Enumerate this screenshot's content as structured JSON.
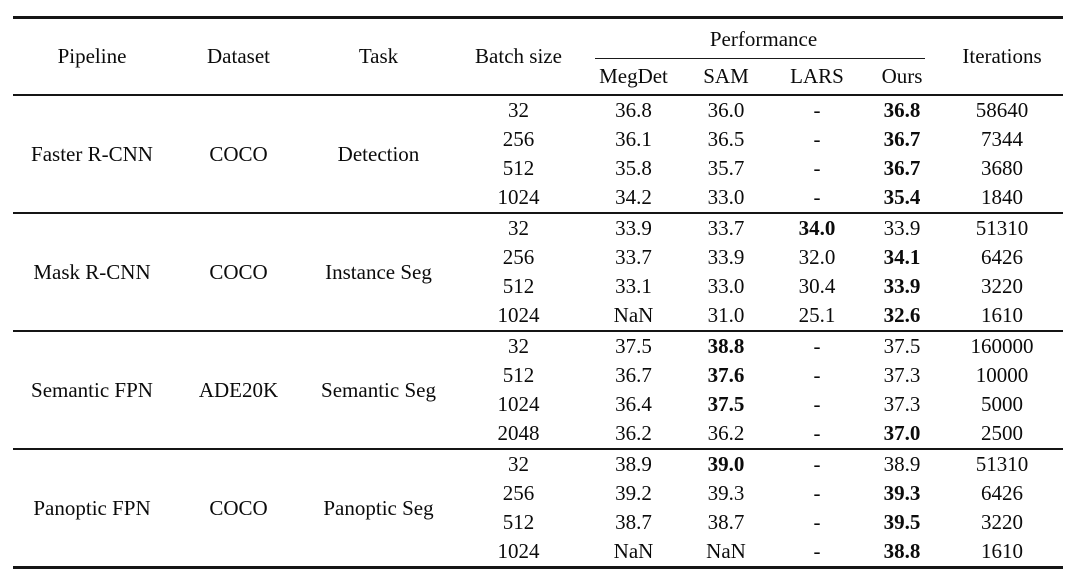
{
  "table": {
    "columns": [
      "Pipeline",
      "Dataset",
      "Task",
      "Batch size"
    ],
    "performance_header": "Performance",
    "performance_columns": [
      "MegDet",
      "SAM",
      "LARS",
      "Ours"
    ],
    "iterations_header": "Iterations",
    "groups": [
      {
        "pipeline": "Faster R-CNN",
        "dataset": "COCO",
        "task": "Detection",
        "rows": [
          {
            "batch_size": "32",
            "values": [
              "36.8",
              "36.0",
              "-",
              "36.8"
            ],
            "bold": [
              false,
              false,
              false,
              true
            ],
            "iterations": "58640"
          },
          {
            "batch_size": "256",
            "values": [
              "36.1",
              "36.5",
              "-",
              "36.7"
            ],
            "bold": [
              false,
              false,
              false,
              true
            ],
            "iterations": "7344"
          },
          {
            "batch_size": "512",
            "values": [
              "35.8",
              "35.7",
              "-",
              "36.7"
            ],
            "bold": [
              false,
              false,
              false,
              true
            ],
            "iterations": "3680"
          },
          {
            "batch_size": "1024",
            "values": [
              "34.2",
              "33.0",
              "-",
              "35.4"
            ],
            "bold": [
              false,
              false,
              false,
              true
            ],
            "iterations": "1840"
          }
        ]
      },
      {
        "pipeline": "Mask R-CNN",
        "dataset": "COCO",
        "task": "Instance Seg",
        "rows": [
          {
            "batch_size": "32",
            "values": [
              "33.9",
              "33.7",
              "34.0",
              "33.9"
            ],
            "bold": [
              false,
              false,
              true,
              false
            ],
            "iterations": "51310"
          },
          {
            "batch_size": "256",
            "values": [
              "33.7",
              "33.9",
              "32.0",
              "34.1"
            ],
            "bold": [
              false,
              false,
              false,
              true
            ],
            "iterations": "6426"
          },
          {
            "batch_size": "512",
            "values": [
              "33.1",
              "33.0",
              "30.4",
              "33.9"
            ],
            "bold": [
              false,
              false,
              false,
              true
            ],
            "iterations": "3220"
          },
          {
            "batch_size": "1024",
            "values": [
              "NaN",
              "31.0",
              "25.1",
              "32.6"
            ],
            "bold": [
              false,
              false,
              false,
              true
            ],
            "iterations": "1610"
          }
        ]
      },
      {
        "pipeline": "Semantic FPN",
        "dataset": "ADE20K",
        "task": "Semantic Seg",
        "rows": [
          {
            "batch_size": "32",
            "values": [
              "37.5",
              "38.8",
              "-",
              "37.5"
            ],
            "bold": [
              false,
              true,
              false,
              false
            ],
            "iterations": "160000"
          },
          {
            "batch_size": "512",
            "values": [
              "36.7",
              "37.6",
              "-",
              "37.3"
            ],
            "bold": [
              false,
              true,
              false,
              false
            ],
            "iterations": "10000"
          },
          {
            "batch_size": "1024",
            "values": [
              "36.4",
              "37.5",
              "-",
              "37.3"
            ],
            "bold": [
              false,
              true,
              false,
              false
            ],
            "iterations": "5000"
          },
          {
            "batch_size": "2048",
            "values": [
              "36.2",
              "36.2",
              "-",
              "37.0"
            ],
            "bold": [
              false,
              false,
              false,
              true
            ],
            "iterations": "2500"
          }
        ]
      },
      {
        "pipeline": "Panoptic FPN",
        "dataset": "COCO",
        "task": "Panoptic Seg",
        "rows": [
          {
            "batch_size": "32",
            "values": [
              "38.9",
              "39.0",
              "-",
              "38.9"
            ],
            "bold": [
              false,
              true,
              false,
              false
            ],
            "iterations": "51310"
          },
          {
            "batch_size": "256",
            "values": [
              "39.2",
              "39.3",
              "-",
              "39.3"
            ],
            "bold": [
              false,
              false,
              false,
              true
            ],
            "iterations": "6426"
          },
          {
            "batch_size": "512",
            "values": [
              "38.7",
              "38.7",
              "-",
              "39.5"
            ],
            "bold": [
              false,
              false,
              false,
              true
            ],
            "iterations": "3220"
          },
          {
            "batch_size": "1024",
            "values": [
              "NaN",
              "NaN",
              "-",
              "38.8"
            ],
            "bold": [
              false,
              false,
              false,
              true
            ],
            "iterations": "1610"
          }
        ]
      }
    ]
  }
}
